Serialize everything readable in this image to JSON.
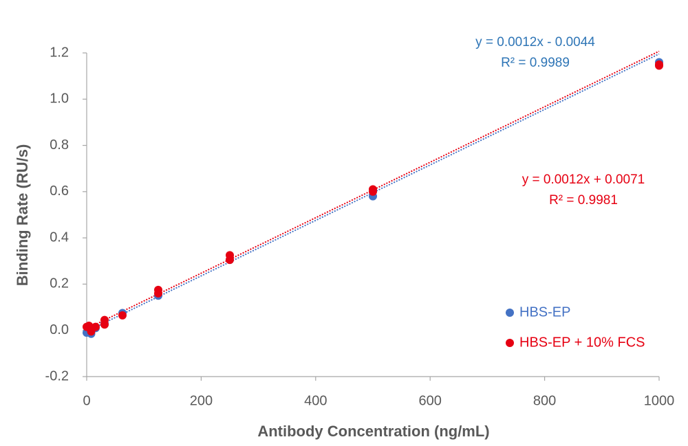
{
  "chart_data": {
    "type": "scatter",
    "x_label": "Antibody Concentration (ng/mL)",
    "y_label": "Binding Rate (RU/s)",
    "xlim": [
      0,
      1000
    ],
    "xticks": [
      0,
      200,
      400,
      600,
      800,
      1000
    ],
    "ylim": [
      -0.2,
      1.2
    ],
    "yticks": [
      -0.2,
      {
        "value": 0,
        "label": "0.0"
      },
      0.2,
      0.4,
      0.6,
      0.8,
      {
        "value": 1,
        "label": "1.0"
      },
      1.2
    ],
    "grid": false,
    "legend": "right",
    "series": [
      {
        "name": "HBS-EP",
        "color": "#4472c4",
        "x": [
          0,
          7.8,
          15.6,
          31.25,
          62.5,
          125,
          250,
          500,
          1000
        ],
        "values": [
          -0.01,
          -0.015,
          0.01,
          0.03,
          0.075,
          0.15,
          0.305,
          0.58,
          1.16
        ],
        "trendline": {
          "slope": 0.0012,
          "intercept": -0.0044,
          "equation": "y = 0.0012x - 0.0044",
          "r2": "R² = 0.9989",
          "text_color": "#2e75b6"
        }
      },
      {
        "name": "HBS-EP + 10% FCS",
        "color": "#e60012",
        "x": [
          0,
          3.9,
          7.8,
          15.6,
          31.25,
          31.25,
          62.5,
          125,
          125,
          250,
          250,
          500,
          500,
          1000,
          1000
        ],
        "values": [
          0.015,
          0.02,
          -0.005,
          0.015,
          0.045,
          0.025,
          0.065,
          0.175,
          0.16,
          0.325,
          0.305,
          0.61,
          0.6,
          1.15,
          1.145
        ],
        "trendline": {
          "slope": 0.0012,
          "intercept": 0.0071,
          "equation": "y = 0.0012x + 0.0071",
          "r2": "R² = 0.9981",
          "text_color": "#e60012"
        }
      }
    ]
  }
}
